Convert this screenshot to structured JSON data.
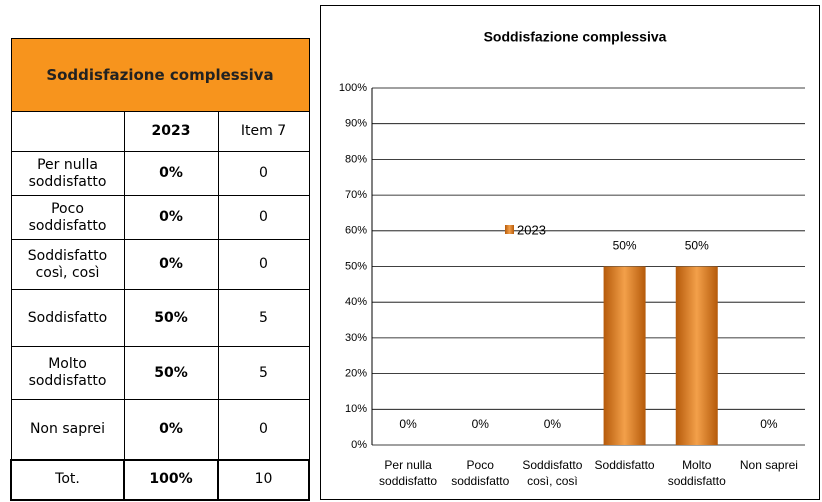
{
  "table": {
    "title": "Soddisfazione complessiva",
    "columns": [
      "2023",
      "Item 7"
    ],
    "rows": [
      [
        "Per nulla soddisfatto",
        "0%",
        "0"
      ],
      [
        "Poco soddisfatto",
        "0%",
        "0"
      ],
      [
        "Soddisfatto così, così",
        "0%",
        "0"
      ],
      [
        "Soddisfatto",
        "50%",
        "5"
      ],
      [
        "Molto soddisfatto",
        "50%",
        "5"
      ],
      [
        "Non saprei",
        "0%",
        "0"
      ],
      [
        "Tot.",
        "100%",
        "10"
      ]
    ]
  },
  "chart_data": {
    "type": "bar",
    "title": "Soddisfazione complessiva",
    "categories": [
      "Per nulla soddisfatto",
      "Poco soddisfatto",
      "Soddisfatto così, così",
      "Soddisfatto",
      "Molto soddisfatto",
      "Non saprei"
    ],
    "series": [
      {
        "name": "2023",
        "color": "#e07b1a",
        "values": [
          0,
          0,
          0,
          50,
          50,
          0
        ],
        "value_labels": [
          "0%",
          "0%",
          "0%",
          "50%",
          "50%",
          "0%"
        ]
      }
    ],
    "ylim": [
      0,
      100
    ],
    "yticks": [
      {
        "value": 0,
        "label": "0%"
      },
      {
        "value": 10,
        "label": "10%"
      },
      {
        "value": 20,
        "label": "20%"
      },
      {
        "value": 30,
        "label": "30%"
      },
      {
        "value": 40,
        "label": "40%"
      },
      {
        "value": 50,
        "label": "50%"
      },
      {
        "value": 60,
        "label": "60%"
      },
      {
        "value": 70,
        "label": "70%"
      },
      {
        "value": 80,
        "label": "80%"
      },
      {
        "value": 90,
        "label": "90%"
      },
      {
        "value": 100,
        "label": "100%"
      }
    ],
    "grid": true,
    "legend": "center"
  }
}
